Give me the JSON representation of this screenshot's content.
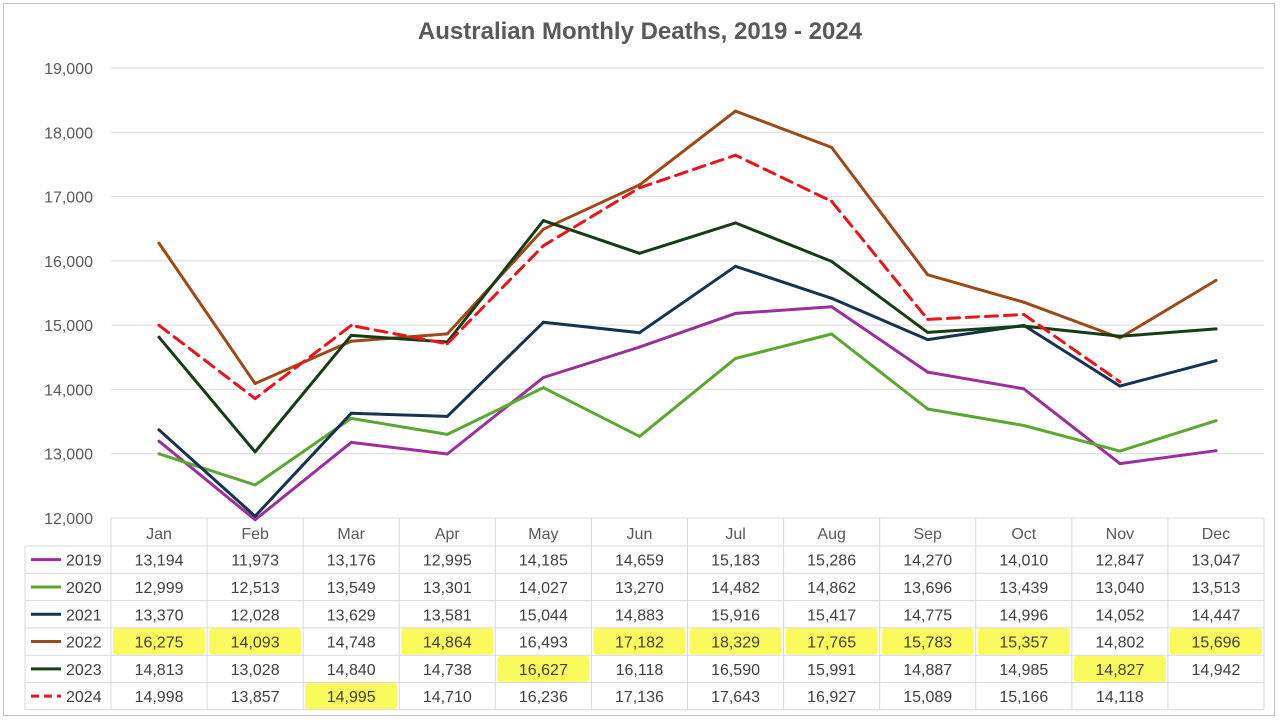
{
  "chart_data": {
    "type": "line",
    "title": "Australian Monthly Deaths, 2019 - 2024",
    "categories": [
      "Jan",
      "Feb",
      "Mar",
      "Apr",
      "May",
      "Jun",
      "Jul",
      "Aug",
      "Sep",
      "Oct",
      "Nov",
      "Dec"
    ],
    "ylim": [
      12000,
      19000
    ],
    "y_ticks": [
      "12,000",
      "13,000",
      "14,000",
      "15,000",
      "16,000",
      "17,000",
      "18,000",
      "19,000"
    ],
    "grid": true,
    "legend": "data table below chart",
    "series": [
      {
        "name": "2019",
        "color": "#9b2f9b",
        "dashed": false,
        "values": [
          13194,
          11973,
          13176,
          12995,
          14185,
          14659,
          15183,
          15286,
          14270,
          14010,
          12847,
          13047
        ],
        "labels": [
          "13,194",
          "11,973",
          "13,176",
          "12,995",
          "14,185",
          "14,659",
          "15,183",
          "15,286",
          "14,270",
          "14,010",
          "12,847",
          "13,047"
        ],
        "highlighted": []
      },
      {
        "name": "2020",
        "color": "#5aa832",
        "dashed": false,
        "values": [
          12999,
          12513,
          13549,
          13301,
          14027,
          13270,
          14482,
          14862,
          13696,
          13439,
          13040,
          13513
        ],
        "labels": [
          "12,999",
          "12,513",
          "13,549",
          "13,301",
          "14,027",
          "13,270",
          "14,482",
          "14,862",
          "13,696",
          "13,439",
          "13,040",
          "13,513"
        ],
        "highlighted": []
      },
      {
        "name": "2021",
        "color": "#17344f",
        "dashed": false,
        "values": [
          13370,
          12028,
          13629,
          13581,
          15044,
          14883,
          15916,
          15417,
          14775,
          14996,
          14052,
          14447
        ],
        "labels": [
          "13,370",
          "12,028",
          "13,629",
          "13,581",
          "15,044",
          "14,883",
          "15,916",
          "15,417",
          "14,775",
          "14,996",
          "14,052",
          "14,447"
        ],
        "highlighted": []
      },
      {
        "name": "2022",
        "color": "#9c4a1a",
        "dashed": false,
        "values": [
          16275,
          14093,
          14748,
          14864,
          16493,
          17182,
          18329,
          17765,
          15783,
          15357,
          14802,
          15696
        ],
        "labels": [
          "16,275",
          "14,093",
          "14,748",
          "14,864",
          "16,493",
          "17,182",
          "18,329",
          "17,765",
          "15,783",
          "15,357",
          "14,802",
          "15,696"
        ],
        "highlighted": [
          0,
          1,
          3,
          5,
          6,
          7,
          8,
          9,
          11
        ]
      },
      {
        "name": "2023",
        "color": "#163d16",
        "dashed": false,
        "values": [
          14813,
          13028,
          14840,
          14738,
          16627,
          16118,
          16590,
          15991,
          14887,
          14985,
          14827,
          14942
        ],
        "labels": [
          "14,813",
          "13,028",
          "14,840",
          "14,738",
          "16,627",
          "16,118",
          "16,590",
          "15,991",
          "14,887",
          "14,985",
          "14,827",
          "14,942"
        ],
        "highlighted": [
          4,
          10
        ]
      },
      {
        "name": "2024",
        "color": "#e8161a",
        "dashed": true,
        "values": [
          14998,
          13857,
          14995,
          14710,
          16236,
          17136,
          17643,
          16927,
          15089,
          15166,
          14118,
          null
        ],
        "labels": [
          "14,998",
          "13,857",
          "14,995",
          "14,710",
          "16,236",
          "17,136",
          "17,643",
          "16,927",
          "15,089",
          "15,166",
          "14,118",
          ""
        ],
        "highlighted": [
          2
        ]
      }
    ]
  },
  "colors": {
    "highlight": "#fbfa5c",
    "gridline": "#d9d9d9",
    "text": "#595959"
  }
}
